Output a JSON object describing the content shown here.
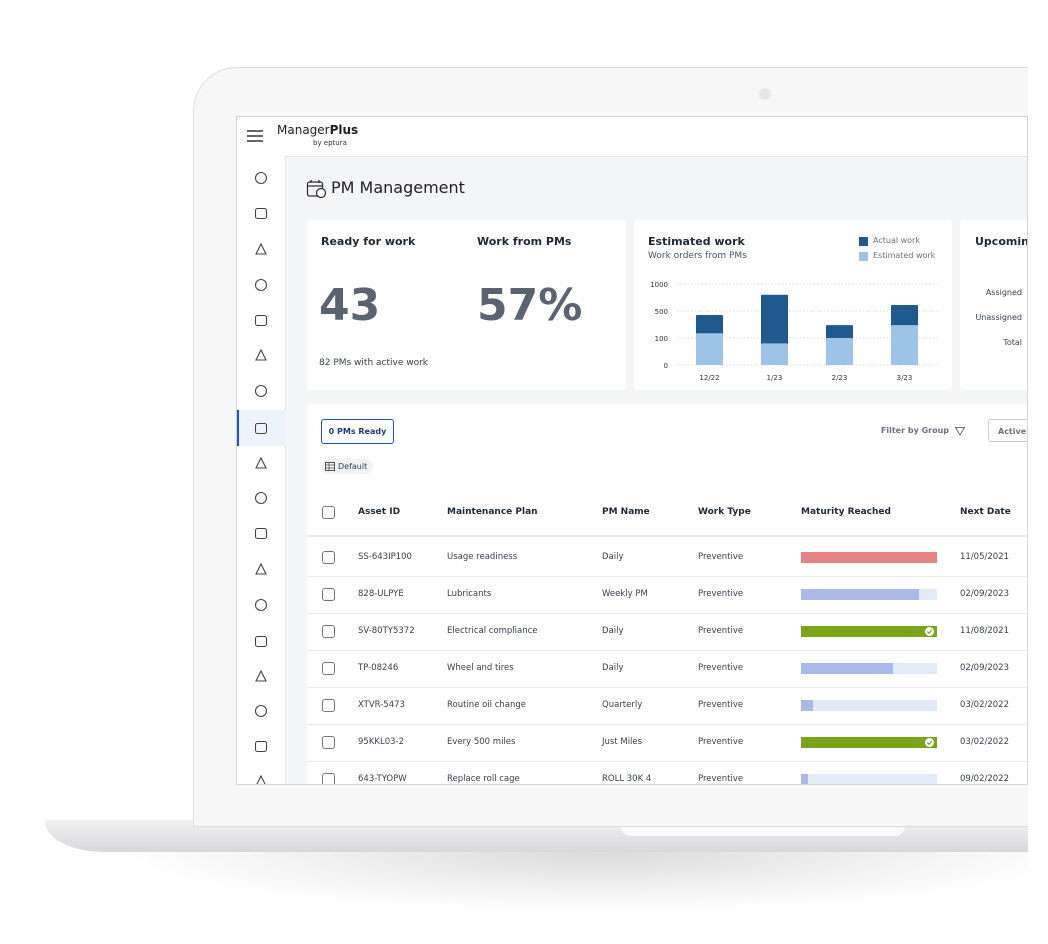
{
  "app": {
    "brand_light": "Manager",
    "brand_bold": "Plus",
    "byline": "by eptura"
  },
  "page_title": "PM Management",
  "cards": {
    "ready": {
      "label": "Ready for work",
      "value": 43,
      "note": "82 PMs with active work"
    },
    "from_pms": {
      "label": "Work from PMs",
      "value": "57%"
    },
    "chart": {
      "type": "bar",
      "title": "Estimated work",
      "subtitle": "Work orders from PMs",
      "categories": [
        "12/22",
        "1/23",
        "2/23",
        "3/23"
      ],
      "series": [
        {
          "name": "Actual work",
          "color": "#1f5a8f",
          "values": [
            440,
            800,
            290,
            610
          ]
        },
        {
          "name": "Estimated work",
          "color": "#9dc3e6",
          "values": [
            170,
            80,
            100,
            290
          ]
        }
      ],
      "ylim": [
        0,
        1000
      ],
      "yticks": [
        0,
        100,
        500,
        1000
      ],
      "grid": true
    },
    "upcoming": {
      "title": "Upcoming",
      "rows": [
        "Assigned",
        "Unassigned",
        "Total"
      ]
    }
  },
  "toolbar": {
    "ready_button": "0 PMs Ready",
    "view": "Default",
    "filter": "Filter by Group",
    "status_button": "Active F"
  },
  "table": {
    "columns": [
      "Asset ID",
      "Maintenance Plan",
      "PM Name",
      "Work Type",
      "Maturity Reached",
      "Next Date"
    ],
    "rows": [
      {
        "asset_id": "SS-643IP100",
        "plan": "Usage readiness",
        "pm_name": "Daily",
        "work_type": "Preventive",
        "maturity": 100,
        "color": "#e88181",
        "check": false,
        "next_date": "11/05/2021"
      },
      {
        "asset_id": "828-ULPYE",
        "plan": "Lubricants",
        "pm_name": "Weekly PM",
        "work_type": "Preventive",
        "maturity": 87,
        "color": "#a9b9e8",
        "check": false,
        "next_date": "02/09/2023"
      },
      {
        "asset_id": "SV-80TY5372",
        "plan": "Electrical compliance",
        "pm_name": "Daily",
        "work_type": "Preventive",
        "maturity": 100,
        "color": "#7aa516",
        "check": true,
        "next_date": "11/08/2021"
      },
      {
        "asset_id": "TP-08246",
        "plan": "Wheel and tires",
        "pm_name": "Daily",
        "work_type": "Preventive",
        "maturity": 68,
        "color": "#a9b9e8",
        "check": false,
        "next_date": "02/09/2023"
      },
      {
        "asset_id": "XTVR-5473",
        "plan": "Routine oil change",
        "pm_name": "Quarterly",
        "work_type": "Preventive",
        "maturity": 9,
        "color": "#a9b9e8",
        "check": false,
        "next_date": "03/02/2022"
      },
      {
        "asset_id": "95KKL03-2",
        "plan": "Every 500 miles",
        "pm_name": "Just Miles",
        "work_type": "Preventive",
        "maturity": 100,
        "color": "#7aa516",
        "check": true,
        "next_date": "03/02/2022"
      },
      {
        "asset_id": "643-TYOPW",
        "plan": "Replace roll cage",
        "pm_name": "ROLL 30K 4",
        "work_type": "Preventive",
        "maturity": 5,
        "color": "#a9b9e8",
        "check": false,
        "next_date": "09/02/2022"
      }
    ]
  }
}
